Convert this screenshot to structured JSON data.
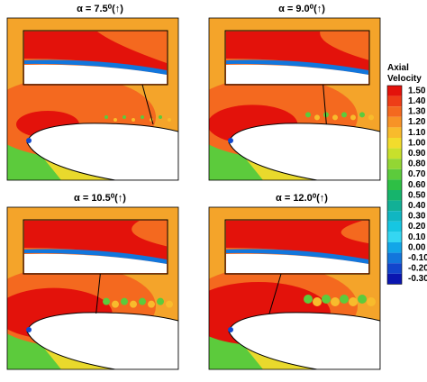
{
  "panels": [
    {
      "title": "α = 7.5⁰(↑)"
    },
    {
      "title": "α = 9.0⁰(↑)"
    },
    {
      "title": "α = 10.5⁰(↑)"
    },
    {
      "title": "α = 12.0⁰(↑)"
    }
  ],
  "colorbar": {
    "title": "Axial Velocity",
    "labels": [
      "1.50",
      "1.40",
      "1.30",
      "1.20",
      "1.10",
      "1.00",
      "0.90",
      "0.80",
      "0.70",
      "0.60",
      "0.50",
      "0.40",
      "0.30",
      "0.20",
      "0.10",
      "0.00",
      "-0.10",
      "-0.20",
      "-0.30"
    ],
    "colors": [
      "#e3120b",
      "#ee3d17",
      "#f4691f",
      "#f79326",
      "#f8bb2c",
      "#f2dc2c",
      "#c8e02c",
      "#93d634",
      "#5ccb3c",
      "#2ebf45",
      "#16b46c",
      "#12b096",
      "#10b6c2",
      "#16c6e2",
      "#34d6f2",
      "#12a6e8",
      "#1276dc",
      "#1246cc",
      "#0a16b0"
    ]
  }
}
